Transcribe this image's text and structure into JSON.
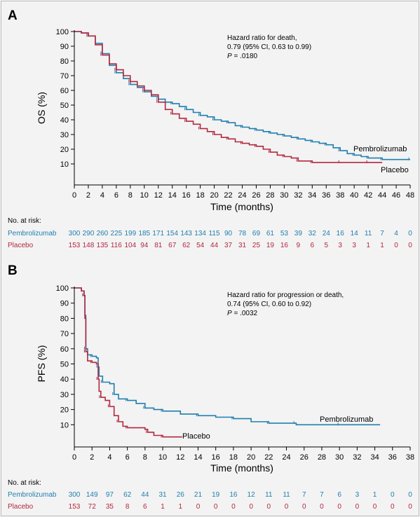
{
  "colors": {
    "pembrolizumab": "#1f7fae",
    "placebo": "#b3283f",
    "axis": "#000000"
  },
  "chart_data": [
    {
      "type": "line",
      "panel_label": "A",
      "ylabel": "OS (%)",
      "xlabel": "Time (months)",
      "xlim": [
        0,
        48
      ],
      "ylim": [
        10,
        100
      ],
      "xticks": [
        "0",
        "2",
        "4",
        "6",
        "8",
        "10",
        "12",
        "14",
        "16",
        "18",
        "20",
        "22",
        "24",
        "26",
        "28",
        "30",
        "32",
        "34",
        "36",
        "38",
        "40",
        "42",
        "44",
        "46",
        "48"
      ],
      "yticks": [
        "10",
        "20",
        "30",
        "40",
        "50",
        "60",
        "70",
        "80",
        "90",
        "100"
      ],
      "annotation": {
        "line1": "Hazard ratio for death,",
        "line2": "0.79 (95% CI, 0.63 to 0.99)",
        "p_italic": "P",
        "p_value": " = .0180"
      },
      "series": [
        {
          "name": "Pembrolizumab",
          "points": [
            [
              0,
              100
            ],
            [
              1,
              99
            ],
            [
              2,
              97
            ],
            [
              3,
              92
            ],
            [
              4,
              85
            ],
            [
              5,
              77
            ],
            [
              6,
              72
            ],
            [
              7,
              68
            ],
            [
              8,
              64
            ],
            [
              9,
              62
            ],
            [
              10,
              59
            ],
            [
              11,
              56
            ],
            [
              12,
              54
            ],
            [
              13,
              52
            ],
            [
              14,
              51
            ],
            [
              15,
              49
            ],
            [
              16,
              47
            ],
            [
              17,
              45
            ],
            [
              18,
              43
            ],
            [
              19,
              42
            ],
            [
              20,
              40
            ],
            [
              21,
              39
            ],
            [
              22,
              38
            ],
            [
              23,
              36
            ],
            [
              24,
              35
            ],
            [
              25,
              34
            ],
            [
              26,
              33
            ],
            [
              27,
              32
            ],
            [
              28,
              31
            ],
            [
              29,
              30
            ],
            [
              30,
              29
            ],
            [
              31,
              28
            ],
            [
              32,
              27
            ],
            [
              33,
              26
            ],
            [
              34,
              25
            ],
            [
              35,
              24
            ],
            [
              36,
              23
            ],
            [
              37,
              21
            ],
            [
              38,
              19
            ],
            [
              39,
              17
            ],
            [
              40,
              16
            ],
            [
              41,
              15
            ],
            [
              42,
              14
            ],
            [
              43,
              14
            ],
            [
              44,
              13
            ],
            [
              46,
              13
            ],
            [
              48,
              13
            ]
          ]
        },
        {
          "name": "Placebo",
          "points": [
            [
              0,
              100
            ],
            [
              1,
              99
            ],
            [
              2,
              97
            ],
            [
              3,
              91
            ],
            [
              4,
              84
            ],
            [
              5,
              78
            ],
            [
              6,
              74
            ],
            [
              7,
              70
            ],
            [
              8,
              66
            ],
            [
              9,
              63
            ],
            [
              10,
              60
            ],
            [
              11,
              57
            ],
            [
              12,
              52
            ],
            [
              13,
              47
            ],
            [
              14,
              44
            ],
            [
              15,
              41
            ],
            [
              16,
              39
            ],
            [
              17,
              37
            ],
            [
              18,
              34
            ],
            [
              19,
              32
            ],
            [
              20,
              30
            ],
            [
              21,
              28
            ],
            [
              22,
              27
            ],
            [
              23,
              25
            ],
            [
              24,
              24
            ],
            [
              25,
              23
            ],
            [
              26,
              22
            ],
            [
              27,
              20
            ],
            [
              28,
              18
            ],
            [
              29,
              16
            ],
            [
              30,
              15
            ],
            [
              31,
              14
            ],
            [
              32,
              12
            ],
            [
              33,
              12
            ],
            [
              34,
              11
            ],
            [
              36,
              11
            ],
            [
              38,
              11
            ],
            [
              40,
              11
            ],
            [
              42,
              11
            ],
            [
              44,
              11
            ]
          ]
        }
      ],
      "risk_table": {
        "title": "No. at risk:",
        "rows": [
          {
            "label": "Pembrolizumab",
            "values": [
              "300",
              "290",
              "260",
              "225",
              "199",
              "185",
              "171",
              "154",
              "143",
              "134",
              "115",
              "90",
              "78",
              "69",
              "61",
              "53",
              "39",
              "32",
              "24",
              "16",
              "14",
              "11",
              "7",
              "4",
              "0"
            ]
          },
          {
            "label": "Placebo",
            "values": [
              "153",
              "148",
              "135",
              "116",
              "104",
              "94",
              "81",
              "67",
              "62",
              "54",
              "44",
              "37",
              "31",
              "25",
              "19",
              "16",
              "9",
              "6",
              "5",
              "3",
              "3",
              "1",
              "1",
              "0",
              "0"
            ]
          }
        ]
      }
    },
    {
      "type": "line",
      "panel_label": "B",
      "ylabel": "PFS (%)",
      "xlabel": "Time (months)",
      "xlim": [
        0,
        38
      ],
      "ylim": [
        0,
        100
      ],
      "xticks": [
        "0",
        "2",
        "4",
        "6",
        "8",
        "10",
        "12",
        "14",
        "16",
        "18",
        "20",
        "22",
        "24",
        "26",
        "28",
        "30",
        "32",
        "34",
        "36",
        "38"
      ],
      "yticks": [
        "10",
        "20",
        "30",
        "40",
        "50",
        "60",
        "70",
        "80",
        "90",
        "100"
      ],
      "annotation": {
        "line1": "Hazard ratio for progression or death,",
        "line2": "0.74 (95% CI, 0.60 to 0.92)",
        "p_italic": "P",
        "p_value": " = .0032"
      },
      "series": [
        {
          "name": "Pembrolizumab",
          "points": [
            [
              0,
              100
            ],
            [
              0.8,
              98
            ],
            [
              1.1,
              95
            ],
            [
              1.2,
              82
            ],
            [
              1.3,
              60
            ],
            [
              1.5,
              56
            ],
            [
              2,
              55
            ],
            [
              2.5,
              54
            ],
            [
              2.7,
              48
            ],
            [
              2.8,
              42
            ],
            [
              3.2,
              38
            ],
            [
              4,
              37
            ],
            [
              4.5,
              30
            ],
            [
              5,
              27
            ],
            [
              6,
              26
            ],
            [
              7,
              24
            ],
            [
              8,
              21
            ],
            [
              9,
              20
            ],
            [
              10,
              19
            ],
            [
              12,
              17
            ],
            [
              14,
              16
            ],
            [
              16,
              15
            ],
            [
              18,
              14
            ],
            [
              20,
              12
            ],
            [
              22,
              11
            ],
            [
              24,
              11
            ],
            [
              25,
              11
            ],
            [
              25.1,
              10
            ],
            [
              30,
              10
            ],
            [
              34.6,
              10
            ]
          ]
        },
        {
          "name": "Placebo",
          "points": [
            [
              0,
              100
            ],
            [
              0.8,
              98
            ],
            [
              1.1,
              95
            ],
            [
              1.2,
              80
            ],
            [
              1.3,
              58
            ],
            [
              1.5,
              52
            ],
            [
              2,
              51
            ],
            [
              2.5,
              50
            ],
            [
              2.7,
              40
            ],
            [
              2.8,
              32
            ],
            [
              3,
              28
            ],
            [
              3.5,
              26
            ],
            [
              4,
              22
            ],
            [
              4.5,
              16
            ],
            [
              5,
              12
            ],
            [
              5.5,
              9
            ],
            [
              6,
              8
            ],
            [
              8,
              7
            ],
            [
              8.3,
              5
            ],
            [
              9,
              3
            ],
            [
              10,
              2
            ],
            [
              12.2,
              2
            ]
          ]
        }
      ],
      "risk_table": {
        "title": "No. at risk:",
        "rows": [
          {
            "label": "Pembrolizumab",
            "values": [
              "300",
              "149",
              "97",
              "62",
              "44",
              "31",
              "26",
              "21",
              "19",
              "16",
              "12",
              "11",
              "11",
              "7",
              "7",
              "6",
              "3",
              "1",
              "0",
              "0"
            ]
          },
          {
            "label": "Placebo",
            "values": [
              "153",
              "72",
              "35",
              "8",
              "6",
              "1",
              "1",
              "0",
              "0",
              "0",
              "0",
              "0",
              "0",
              "0",
              "0",
              "0",
              "0",
              "0",
              "0",
              "0"
            ]
          }
        ]
      }
    }
  ]
}
